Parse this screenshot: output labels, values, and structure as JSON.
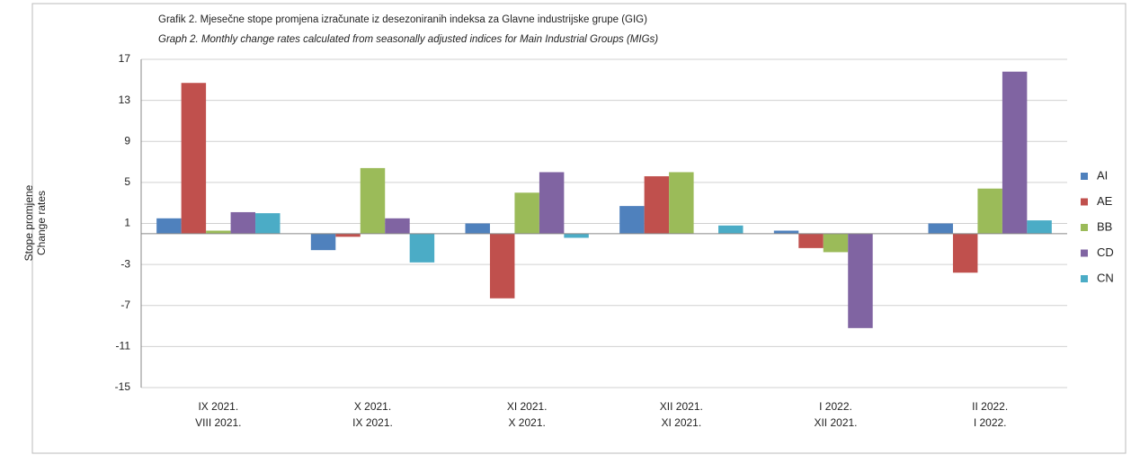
{
  "chart_data": {
    "type": "bar",
    "title": "Grafik 2. Mjesečne stope promjena izračunate iz desezoniranih indeksa za Glavne industrijske grupe (GIG)",
    "subtitle": "Graph 2. Monthly change rates calculated from seasonally adjusted indices for Main Industrial Groups (MIGs)",
    "y_label": [
      "Stope promjene",
      "Change rates"
    ],
    "categories": [
      [
        "IX 2021.",
        "VIII 2021."
      ],
      [
        "X 2021.",
        "IX 2021."
      ],
      [
        "XI 2021.",
        "X 2021."
      ],
      [
        "XII 2021.",
        "XI 2021."
      ],
      [
        "I 2022.",
        "XII 2021."
      ],
      [
        "II 2022.",
        "I 2022."
      ]
    ],
    "series": [
      {
        "name": "AI",
        "color": "#4f81bd",
        "values": [
          1.5,
          -1.6,
          1.0,
          2.7,
          0.3,
          1.0
        ]
      },
      {
        "name": "AE",
        "color": "#c0504d",
        "values": [
          14.7,
          -0.3,
          -6.3,
          5.6,
          -1.4,
          -3.8
        ]
      },
      {
        "name": "BB",
        "color": "#9bbb59",
        "values": [
          0.3,
          6.4,
          4.0,
          6.0,
          -1.8,
          4.4
        ]
      },
      {
        "name": "CD",
        "color": "#8064a2",
        "values": [
          2.1,
          1.5,
          6.0,
          0,
          -9.2,
          15.8
        ]
      },
      {
        "name": "CN",
        "color": "#4bacc6",
        "values": [
          2.0,
          -2.8,
          -0.4,
          0.8,
          0,
          1.3
        ]
      }
    ],
    "ylim": [
      -15,
      17
    ],
    "yticks": [
      17,
      13,
      9,
      5,
      1,
      -3,
      -7,
      -11,
      -15
    ],
    "grid": true,
    "legend": "right"
  }
}
